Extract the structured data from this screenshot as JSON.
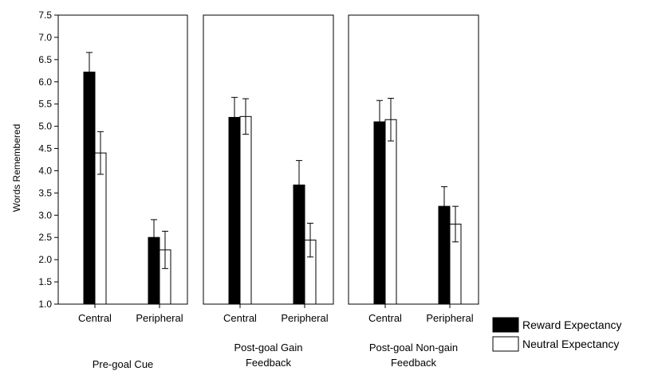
{
  "chart_data": {
    "type": "bar",
    "ylabel": "Words Remembered",
    "ylim": [
      1.0,
      7.5
    ],
    "yticks": [
      "1.0",
      "1.5",
      "2.0",
      "2.5",
      "3.0",
      "3.5",
      "4.0",
      "4.5",
      "5.0",
      "5.5",
      "6.0",
      "6.5",
      "7.0",
      "7.5"
    ],
    "categories": [
      "Central",
      "Peripheral"
    ],
    "legend": {
      "position": "bottom-right",
      "entries": [
        {
          "name": "Reward Expectancy",
          "color": "#000000"
        },
        {
          "name": "Neutral Expectancy",
          "color": "#ffffff"
        }
      ]
    },
    "panels": [
      {
        "title_lines": [
          "Pre-goal Cue"
        ],
        "series": [
          {
            "name": "Reward Expectancy",
            "values": [
              6.22,
              2.5
            ],
            "error": [
              0.44,
              0.4
            ]
          },
          {
            "name": "Neutral Expectancy",
            "values": [
              4.4,
              2.22
            ],
            "error": [
              0.48,
              0.42
            ]
          }
        ]
      },
      {
        "title_lines": [
          "Post-goal Gain",
          "Feedback"
        ],
        "series": [
          {
            "name": "Reward Expectancy",
            "values": [
              5.2,
              3.68
            ],
            "error": [
              0.45,
              0.55
            ]
          },
          {
            "name": "Neutral Expectancy",
            "values": [
              5.22,
              2.44
            ],
            "error": [
              0.4,
              0.38
            ]
          }
        ]
      },
      {
        "title_lines": [
          "Post-goal Non-gain",
          "Feedback"
        ],
        "series": [
          {
            "name": "Reward Expectancy",
            "values": [
              5.1,
              3.2
            ],
            "error": [
              0.48,
              0.44
            ]
          },
          {
            "name": "Neutral Expectancy",
            "values": [
              5.15,
              2.8
            ],
            "error": [
              0.48,
              0.4
            ]
          }
        ]
      }
    ]
  }
}
